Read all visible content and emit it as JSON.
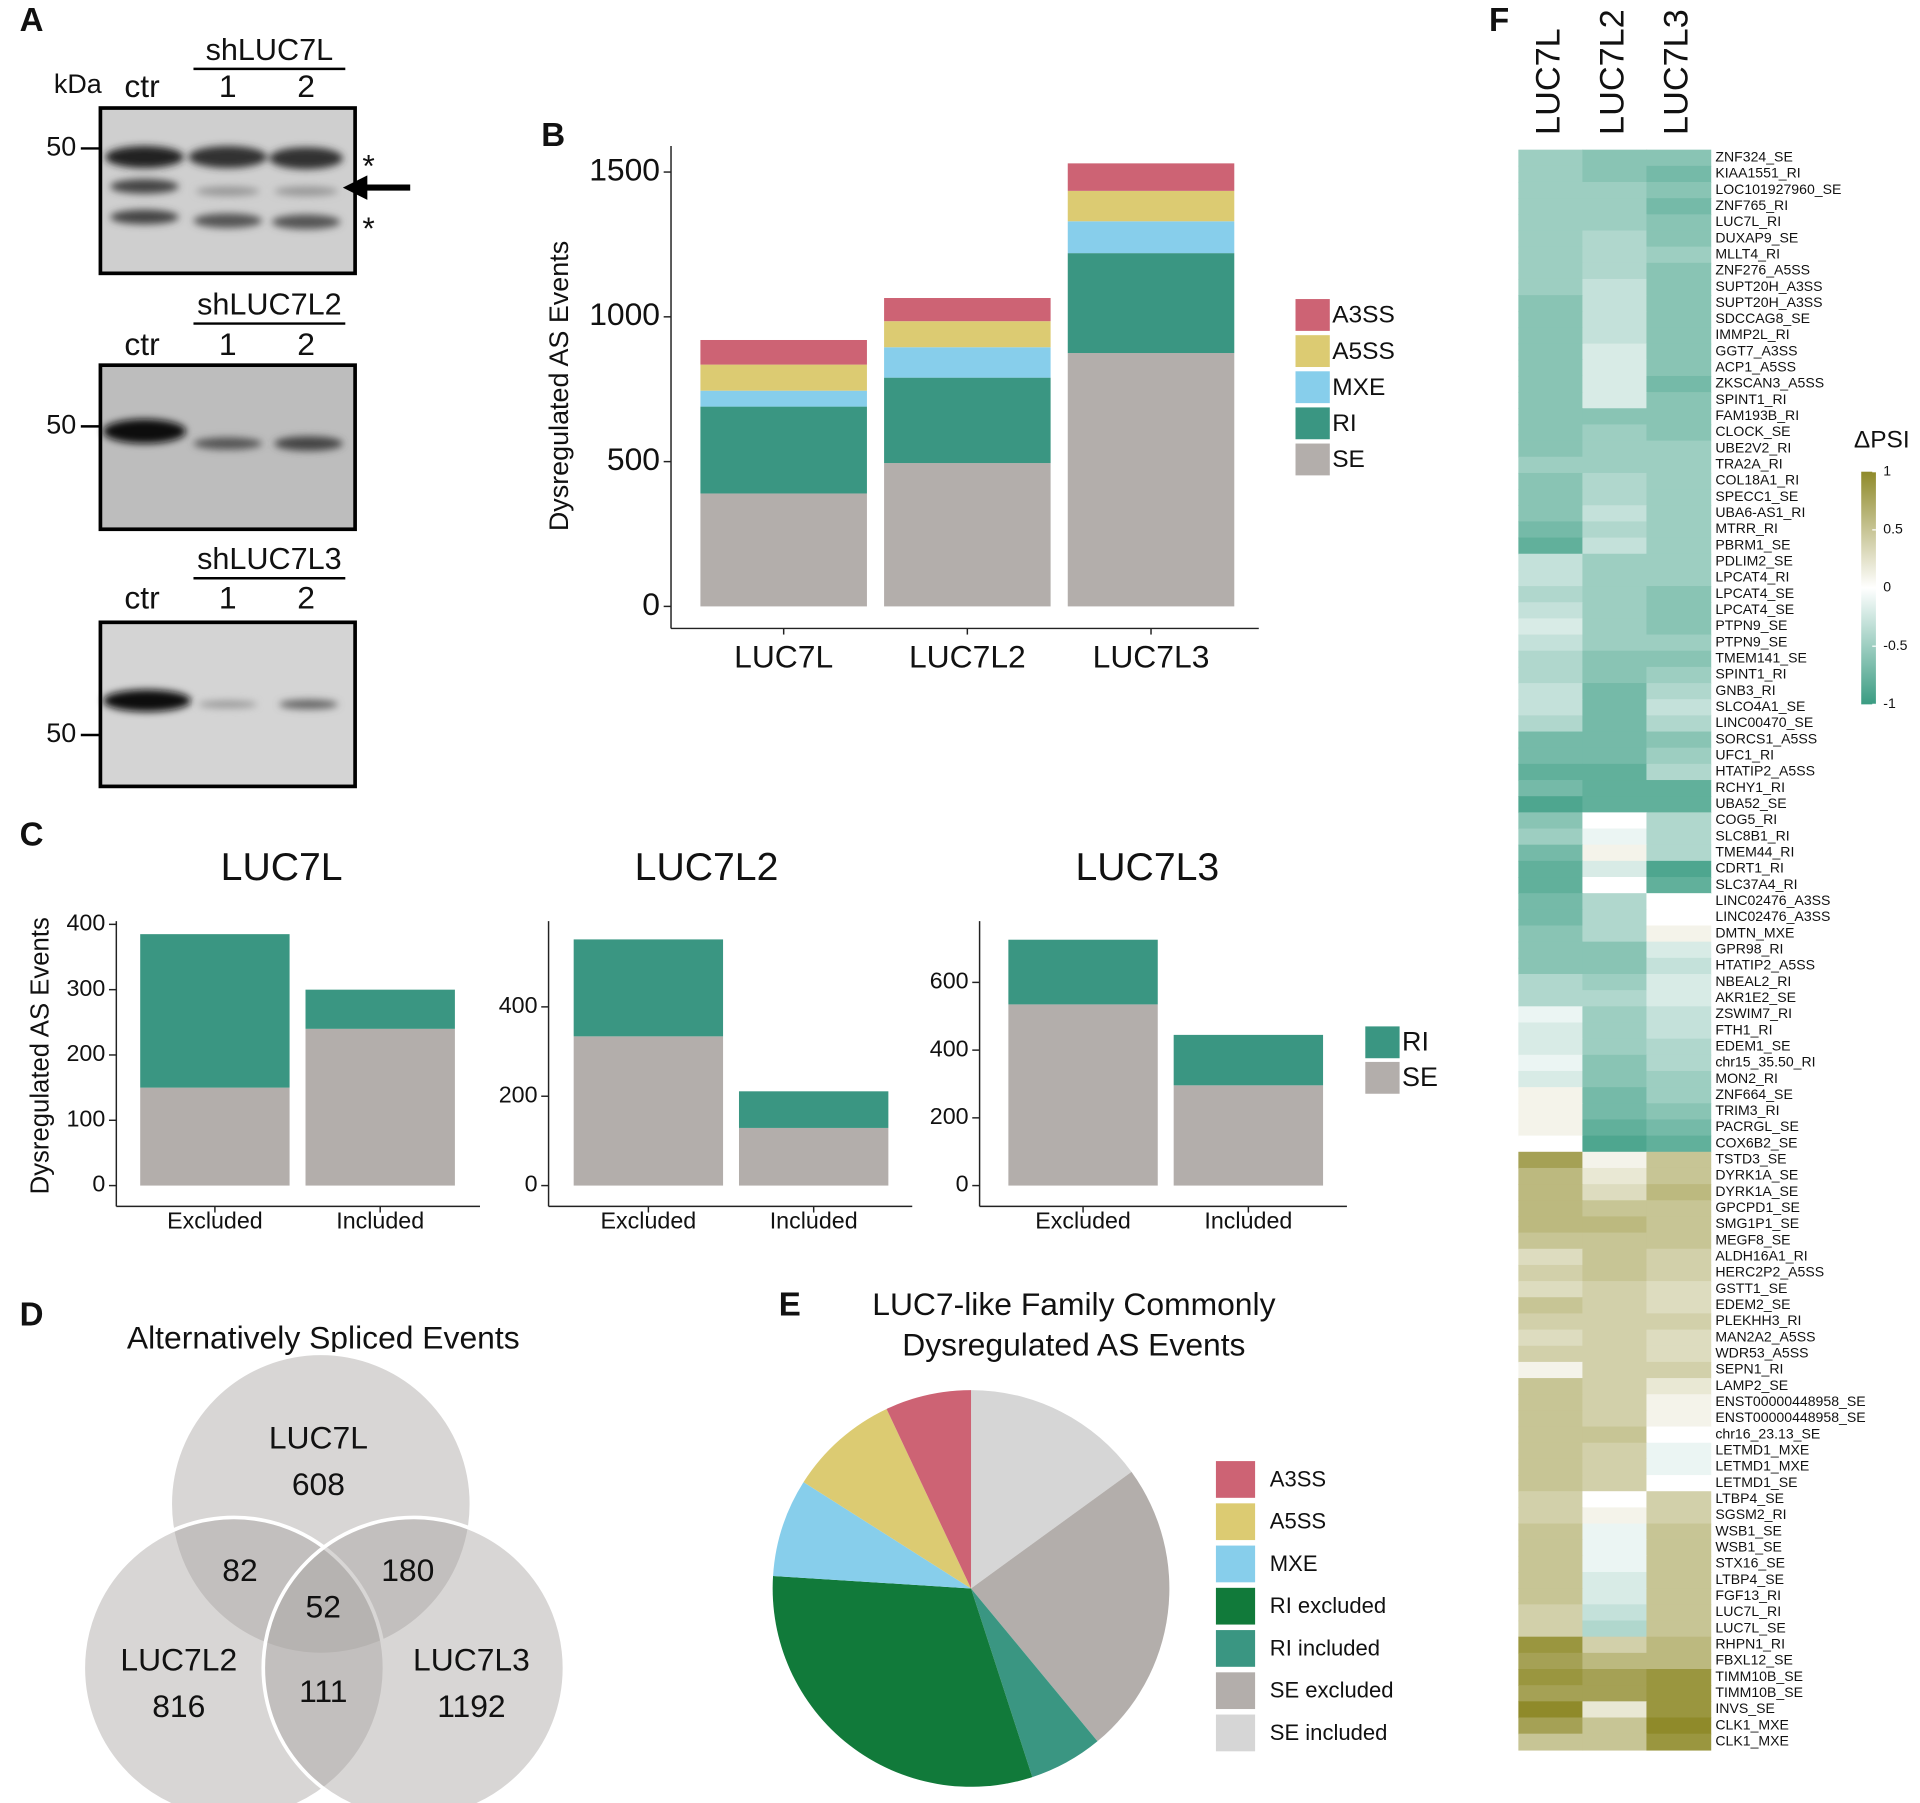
{
  "panel_labels": [
    "A",
    "B",
    "C",
    "D",
    "E",
    "F"
  ],
  "western_blot": {
    "kda": "kDa",
    "asterisk": "*",
    "blots": [
      {
        "title": "shLUC7L",
        "lanes": [
          "ctr",
          "1",
          "2"
        ],
        "marker": 50
      },
      {
        "title": "shLUC7L2",
        "lanes": [
          "ctr",
          "1",
          "2"
        ],
        "marker": 50
      },
      {
        "title": "shLUC7L3",
        "lanes": [
          "ctr",
          "1",
          "2"
        ],
        "marker": 50
      }
    ]
  },
  "chart_data": [
    {
      "type": "bar",
      "stacked": true,
      "ylabel": "Dysregulated AS Events",
      "categories": [
        "LUC7L",
        "LUC7L2",
        "LUC7L3"
      ],
      "series": [
        {
          "name": "A3SS",
          "color": "#cd6374",
          "values": [
            85,
            80,
            95
          ]
        },
        {
          "name": "A5SS",
          "color": "#dccb72",
          "values": [
            90,
            90,
            105
          ]
        },
        {
          "name": "MXE",
          "color": "#87ceeb",
          "values": [
            55,
            105,
            110
          ]
        },
        {
          "name": "RI",
          "color": "#3a9682",
          "values": [
            300,
            295,
            345
          ]
        },
        {
          "name": "SE",
          "color": "#b3aeab",
          "values": [
            390,
            495,
            875
          ]
        }
      ],
      "ylim": [
        0,
        1590
      ],
      "yticks": [
        0,
        500,
        1000,
        1500
      ]
    },
    {
      "type": "bar_panels",
      "stacked": true,
      "ylabel": "Dysregulated AS Events",
      "categories": [
        "Excluded",
        "Included"
      ],
      "series": [
        {
          "name": "RI",
          "color": "#3a9682"
        },
        {
          "name": "SE",
          "color": "#b3aeab"
        }
      ],
      "panels": [
        {
          "title": "LUC7L",
          "ylim": [
            0,
            405
          ],
          "yticks": [
            0,
            100,
            200,
            300,
            400
          ],
          "values": [
            [
              235,
              60
            ],
            [
              150,
              240
            ]
          ]
        },
        {
          "title": "LUC7L2",
          "ylim": [
            0,
            592
          ],
          "yticks": [
            0,
            200,
            400
          ],
          "values": [
            [
              217,
              82
            ],
            [
              334,
              129
            ]
          ]
        },
        {
          "title": "LUC7L3",
          "ylim": [
            0,
            781
          ],
          "yticks": [
            0,
            200,
            400,
            600
          ],
          "values": [
            [
              191,
              149
            ],
            [
              535,
              296
            ]
          ]
        }
      ]
    },
    {
      "type": "venn",
      "title": "Alternatively Spliced Events",
      "sets": [
        "LUC7L",
        "LUC7L2",
        "LUC7L3"
      ],
      "only": [
        608,
        816,
        1192
      ],
      "pairs": [
        82,
        180,
        111
      ],
      "triple": 52
    },
    {
      "type": "pie",
      "title": [
        "LUC7-like Family Commonly",
        "Dysregulated AS Events"
      ],
      "categories": [
        "A3SS",
        "A5SS",
        "MXE",
        "RI excluded",
        "RI included",
        "SE excluded",
        "SE included"
      ],
      "values": [
        7,
        9,
        8,
        31,
        6,
        24,
        15
      ],
      "colors": [
        "#cd6374",
        "#dccb72",
        "#87ceeb",
        "#117a3a",
        "#3a9682",
        "#b3aeab",
        "#d6d6d6"
      ]
    },
    {
      "type": "heatmap",
      "columns": [
        "LUC7L",
        "LUC7L2",
        "LUC7L3"
      ],
      "colorbar_title": "ΔPSI",
      "zlim": [
        -1,
        1
      ],
      "zticks": [
        1,
        0.5,
        0,
        -0.5,
        -1
      ],
      "colors": [
        "#3a9c82",
        "#ffffff",
        "#8f8a2a"
      ],
      "rows": [
        "ZNF324_SE",
        "KIAA1551_RI",
        "LOC101927960_SE",
        "ZNF765_RI",
        "LUC7L_RI",
        "DUXAP9_SE",
        "MLLT4_RI",
        "ZNF276_A5SS",
        "SUPT20H_A3SS",
        "SUPT20H_A3SS",
        "SDCCAG8_SE",
        "IMMP2L_RI",
        "GGT7_A3SS",
        "ACP1_A5SS",
        "ZKSCAN3_A5SS",
        "SPINT1_RI",
        "FAM193B_RI",
        "CLOCK_SE",
        "UBE2V2_RI",
        "TRA2A_RI",
        "COL18A1_RI",
        "SPECC1_SE",
        "UBA6-AS1_RI",
        "MTRR_RI",
        "PBRM1_SE",
        "PDLIM2_SE",
        "LPCAT4_RI",
        "LPCAT4_SE",
        "LPCAT4_SE",
        "PTPN9_SE",
        "PTPN9_SE",
        "TMEM141_SE",
        "SPINT1_RI",
        "GNB3_RI",
        "SLCO4A1_SE",
        "LINC00470_SE",
        "SORCS1_A5SS",
        "UFC1_RI",
        "HTATIP2_A5SS",
        "RCHY1_RI",
        "UBA52_SE",
        "COG5_RI",
        "SLC8B1_RI",
        "TMEM44_RI",
        "CDRT1_RI",
        "SLC37A4_RI",
        "LINC02476_A3SS",
        "LINC02476_A3SS",
        "DMTN_MXE",
        "GPR98_RI",
        "HTATIP2_A5SS",
        "NBEAL2_RI",
        "AKR1E2_SE",
        "ZSWIM7_RI",
        "FTH1_RI",
        "EDEM1_SE",
        "chr15_35.50_RI",
        "MON2_RI",
        "ZNF664_SE",
        "TRIM3_RI",
        "PACRGL_SE",
        "COX6B2_SE",
        "TSTD3_SE",
        "DYRK1A_SE",
        "DYRK1A_SE",
        "GPCPD1_SE",
        "SMG1P1_SE",
        "MEGF8_SE",
        "ALDH16A1_RI",
        "HERC2P2_A5SS",
        "GSTT1_SE",
        "EDEM2_SE",
        "PLEKHH3_RI",
        "MAN2A2_A5SS",
        "WDR53_A5SS",
        "SEPN1_RI",
        "LAMP2_SE",
        "ENST00000448958_SE",
        "ENST00000448958_SE",
        "chr16_23.13_SE",
        "LETMD1_MXE",
        "LETMD1_MXE",
        "LETMD1_SE",
        "LTBP4_SE",
        "SGSM2_RI",
        "WSB1_SE",
        "WSB1_SE",
        "STX16_SE",
        "LTBP4_SE",
        "FGF13_RI",
        "LUC7L_RI",
        "LUC7L_SE",
        "RHPN1_RI",
        "FBXL12_SE",
        "TIMM10B_SE",
        "TIMM10B_SE",
        "INVS_SE",
        "CLK1_MXE",
        "CLK1_MXE"
      ],
      "values": [
        [
          -0.5,
          -0.6,
          -0.6
        ],
        [
          -0.5,
          -0.6,
          -0.7
        ],
        [
          -0.5,
          -0.5,
          -0.6
        ],
        [
          -0.5,
          -0.5,
          -0.7
        ],
        [
          -0.5,
          -0.5,
          -0.6
        ],
        [
          -0.5,
          -0.4,
          -0.6
        ],
        [
          -0.5,
          -0.4,
          -0.5
        ],
        [
          -0.5,
          -0.4,
          -0.6
        ],
        [
          -0.5,
          -0.3,
          -0.6
        ],
        [
          -0.6,
          -0.3,
          -0.6
        ],
        [
          -0.6,
          -0.3,
          -0.6
        ],
        [
          -0.6,
          -0.3,
          -0.6
        ],
        [
          -0.6,
          -0.2,
          -0.6
        ],
        [
          -0.6,
          -0.2,
          -0.6
        ],
        [
          -0.6,
          -0.2,
          -0.7
        ],
        [
          -0.6,
          -0.2,
          -0.6
        ],
        [
          -0.6,
          -0.6,
          -0.6
        ],
        [
          -0.6,
          -0.5,
          -0.6
        ],
        [
          -0.6,
          -0.5,
          -0.5
        ],
        [
          -0.5,
          -0.5,
          -0.5
        ],
        [
          -0.6,
          -0.4,
          -0.5
        ],
        [
          -0.6,
          -0.4,
          -0.5
        ],
        [
          -0.6,
          -0.3,
          -0.5
        ],
        [
          -0.7,
          -0.4,
          -0.5
        ],
        [
          -0.8,
          -0.3,
          -0.5
        ],
        [
          -0.3,
          -0.5,
          -0.5
        ],
        [
          -0.3,
          -0.5,
          -0.5
        ],
        [
          -0.4,
          -0.5,
          -0.6
        ],
        [
          -0.3,
          -0.5,
          -0.6
        ],
        [
          -0.2,
          -0.5,
          -0.6
        ],
        [
          -0.3,
          -0.5,
          -0.5
        ],
        [
          -0.4,
          -0.6,
          -0.6
        ],
        [
          -0.4,
          -0.6,
          -0.5
        ],
        [
          -0.3,
          -0.7,
          -0.4
        ],
        [
          -0.3,
          -0.7,
          -0.3
        ],
        [
          -0.4,
          -0.7,
          -0.4
        ],
        [
          -0.7,
          -0.7,
          -0.6
        ],
        [
          -0.7,
          -0.7,
          -0.5
        ],
        [
          -0.8,
          -0.8,
          -0.4
        ],
        [
          -0.7,
          -0.8,
          -0.8
        ],
        [
          -0.9,
          -0.8,
          -0.8
        ],
        [
          -0.6,
          0,
          -0.4
        ],
        [
          -0.5,
          -0.1,
          -0.4
        ],
        [
          -0.7,
          0.1,
          -0.4
        ],
        [
          -0.8,
          -0.2,
          -0.9
        ],
        [
          -0.8,
          0,
          -0.8
        ],
        [
          -0.7,
          -0.4,
          0
        ],
        [
          -0.7,
          -0.4,
          0
        ],
        [
          -0.6,
          -0.4,
          0.1
        ],
        [
          -0.6,
          -0.6,
          -0.2
        ],
        [
          -0.6,
          -0.6,
          -0.3
        ],
        [
          -0.4,
          -0.5,
          -0.2
        ],
        [
          -0.4,
          -0.4,
          -0.2
        ],
        [
          -0.1,
          -0.5,
          -0.3
        ],
        [
          -0.2,
          -0.5,
          -0.3
        ],
        [
          -0.2,
          -0.5,
          -0.4
        ],
        [
          -0.1,
          -0.6,
          -0.4
        ],
        [
          -0.2,
          -0.6,
          -0.5
        ],
        [
          0.1,
          -0.7,
          -0.5
        ],
        [
          0.1,
          -0.7,
          -0.6
        ],
        [
          0.1,
          -0.8,
          -0.7
        ],
        [
          0,
          -0.9,
          -0.8
        ],
        [
          0.8,
          0.1,
          0.5
        ],
        [
          0.6,
          0.2,
          0.5
        ],
        [
          0.6,
          0.3,
          0.6
        ],
        [
          0.6,
          0.5,
          0.5
        ],
        [
          0.6,
          0.6,
          0.5
        ],
        [
          0.5,
          0.5,
          0.5
        ],
        [
          0.3,
          0.5,
          0.4
        ],
        [
          0.4,
          0.5,
          0.4
        ],
        [
          0.3,
          0.4,
          0.3
        ],
        [
          0.5,
          0.4,
          0.3
        ],
        [
          0.4,
          0.4,
          0.4
        ],
        [
          0.3,
          0.4,
          0.3
        ],
        [
          0.4,
          0.4,
          0.3
        ],
        [
          0.1,
          0.4,
          0.4
        ],
        [
          0.5,
          0.4,
          0.2
        ],
        [
          0.5,
          0.4,
          0.1
        ],
        [
          0.5,
          0.4,
          0.1
        ],
        [
          0.5,
          0.5,
          0
        ],
        [
          0.5,
          0.4,
          -0.1
        ],
        [
          0.5,
          0.4,
          -0.1
        ],
        [
          0.5,
          0.4,
          0
        ],
        [
          0.4,
          0,
          0.4
        ],
        [
          0.4,
          0.1,
          0.4
        ],
        [
          0.5,
          -0.1,
          0.5
        ],
        [
          0.5,
          -0.1,
          0.5
        ],
        [
          0.5,
          -0.1,
          0.5
        ],
        [
          0.5,
          -0.2,
          0.5
        ],
        [
          0.5,
          -0.2,
          0.5
        ],
        [
          0.4,
          -0.3,
          0.5
        ],
        [
          0.4,
          -0.4,
          0.5
        ],
        [
          0.9,
          0.4,
          0.6
        ],
        [
          0.8,
          0.6,
          0.6
        ],
        [
          0.9,
          0.8,
          0.9
        ],
        [
          0.8,
          0.8,
          0.9
        ],
        [
          1,
          0.2,
          0.9
        ],
        [
          0.8,
          0.5,
          1
        ],
        [
          0.5,
          0.5,
          0.9
        ]
      ]
    }
  ]
}
